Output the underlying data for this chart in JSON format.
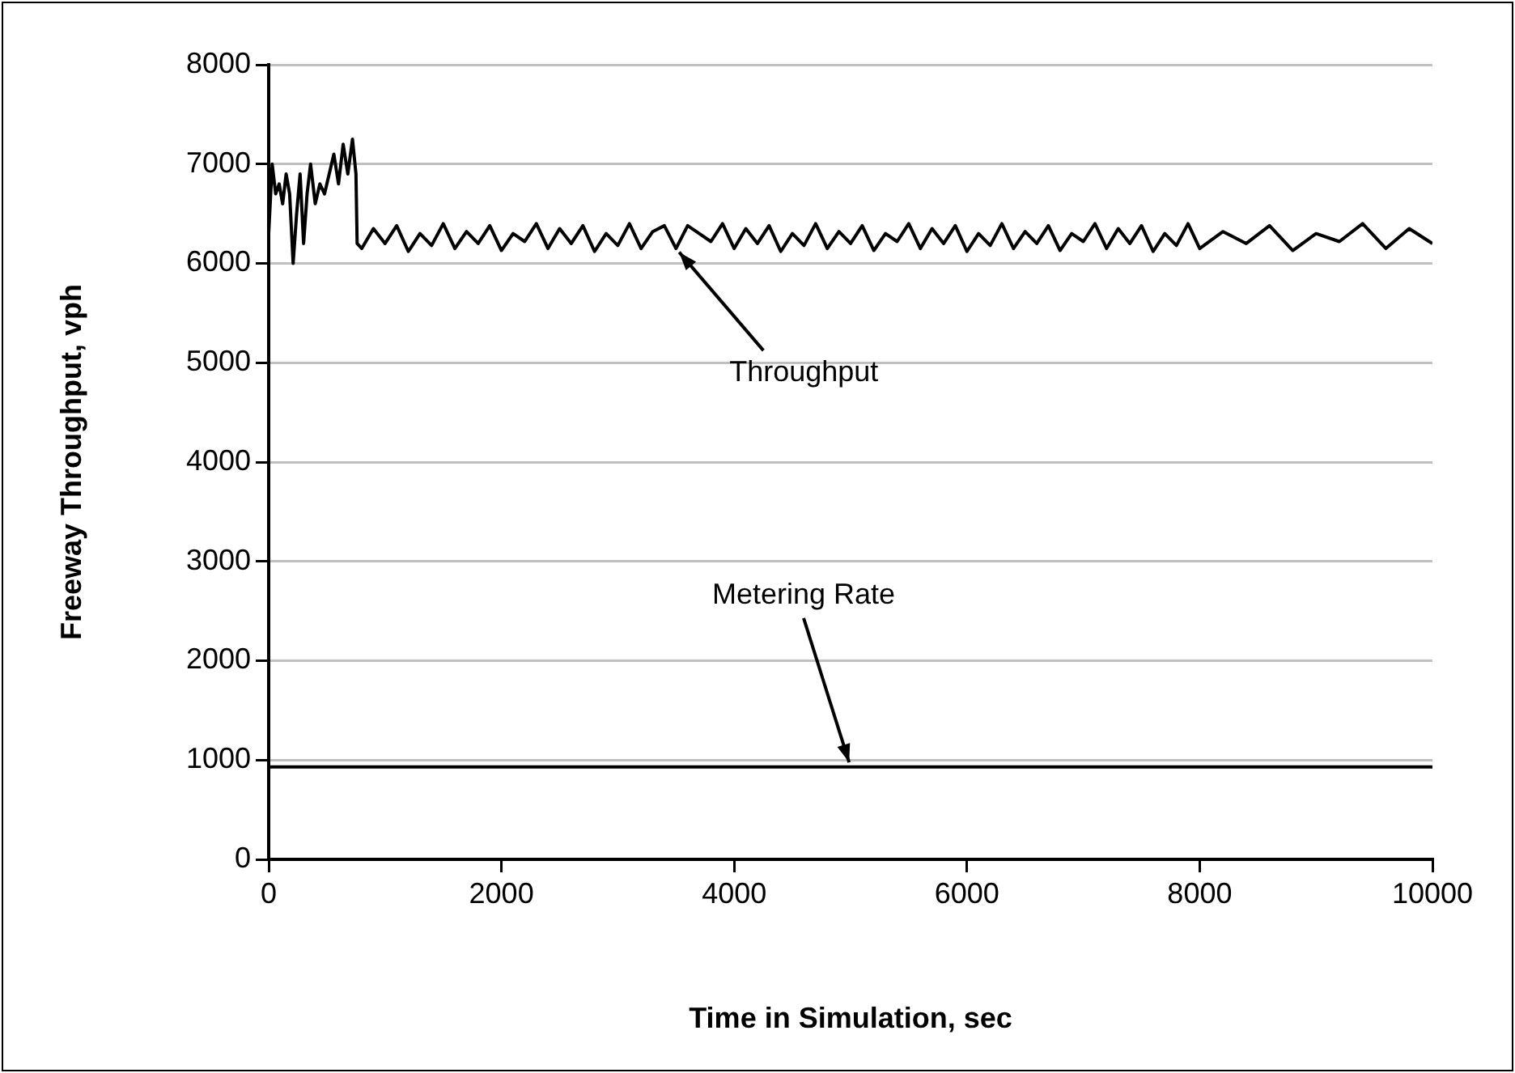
{
  "chart_data": {
    "type": "line",
    "xlabel": "Time in Simulation, sec",
    "ylabel": "Freeway Throughput, vph",
    "xlim": [
      0,
      10000
    ],
    "xticks": [
      0,
      2000,
      4000,
      6000,
      8000,
      10000
    ],
    "ylim": [
      0,
      8000
    ],
    "yticks": [
      0,
      1000,
      2000,
      3000,
      4000,
      5000,
      6000,
      7000,
      8000
    ],
    "grid": "y",
    "legend": false,
    "marker": "none",
    "series": [
      {
        "color": "#000000",
        "x": [
          0,
          30,
          60,
          90,
          120,
          150,
          180,
          210,
          240,
          270,
          300,
          330,
          360,
          400,
          440,
          480,
          520,
          560,
          600,
          640,
          680,
          720,
          750,
          760,
          800,
          900,
          1000,
          1100,
          1200,
          1300,
          1400,
          1500,
          1600,
          1700,
          1800,
          1900,
          2000,
          2100,
          2200,
          2300,
          2400,
          2500,
          2600,
          2700,
          2800,
          2900,
          3000,
          3100,
          3200,
          3300,
          3400,
          3500,
          3600,
          3700,
          3800,
          3900,
          4000,
          4100,
          4200,
          4300,
          4400,
          4500,
          4600,
          4700,
          4800,
          4900,
          5000,
          5100,
          5200,
          5300,
          5400,
          5500,
          5600,
          5700,
          5800,
          5900,
          6000,
          6100,
          6200,
          6300,
          6400,
          6500,
          6600,
          6700,
          6800,
          6900,
          7000,
          7100,
          7200,
          7300,
          7400,
          7500,
          7600,
          7700,
          7800,
          7900,
          8000,
          8200,
          8400,
          8600,
          8800,
          9000,
          9200,
          9400,
          9600,
          9800,
          10000
        ],
        "values": [
          6300,
          7000,
          6700,
          6800,
          6600,
          6900,
          6700,
          6000,
          6500,
          6900,
          6200,
          6700,
          7000,
          6600,
          6800,
          6700,
          6900,
          7100,
          6800,
          7200,
          6900,
          7250,
          6900,
          6200,
          6150,
          6350,
          6200,
          6380,
          6120,
          6300,
          6180,
          6400,
          6150,
          6320,
          6200,
          6380,
          6130,
          6300,
          6220,
          6400,
          6150,
          6350,
          6200,
          6380,
          6120,
          6300,
          6180,
          6400,
          6150,
          6320,
          6380,
          6150,
          6380,
          6300,
          6220,
          6400,
          6150,
          6350,
          6200,
          6380,
          6120,
          6300,
          6180,
          6400,
          6150,
          6320,
          6200,
          6380,
          6130,
          6300,
          6220,
          6400,
          6150,
          6350,
          6200,
          6380,
          6120,
          6300,
          6180,
          6400,
          6150,
          6320,
          6200,
          6380,
          6130,
          6300,
          6220,
          6400,
          6150,
          6350,
          6200,
          6380,
          6120,
          6300,
          6180,
          6400,
          6150,
          6320,
          6200,
          6380,
          6130,
          6300,
          6220,
          6400,
          6150,
          6350,
          6200
        ]
      },
      {
        "color": "#000000",
        "x": [
          0,
          10000
        ],
        "values": [
          930,
          930
        ]
      }
    ],
    "annotations": [
      {
        "text": "Throughput",
        "x": 3500,
        "y": 6150
      },
      {
        "text": "Metering Rate",
        "x": 5000,
        "y": 930
      }
    ]
  }
}
